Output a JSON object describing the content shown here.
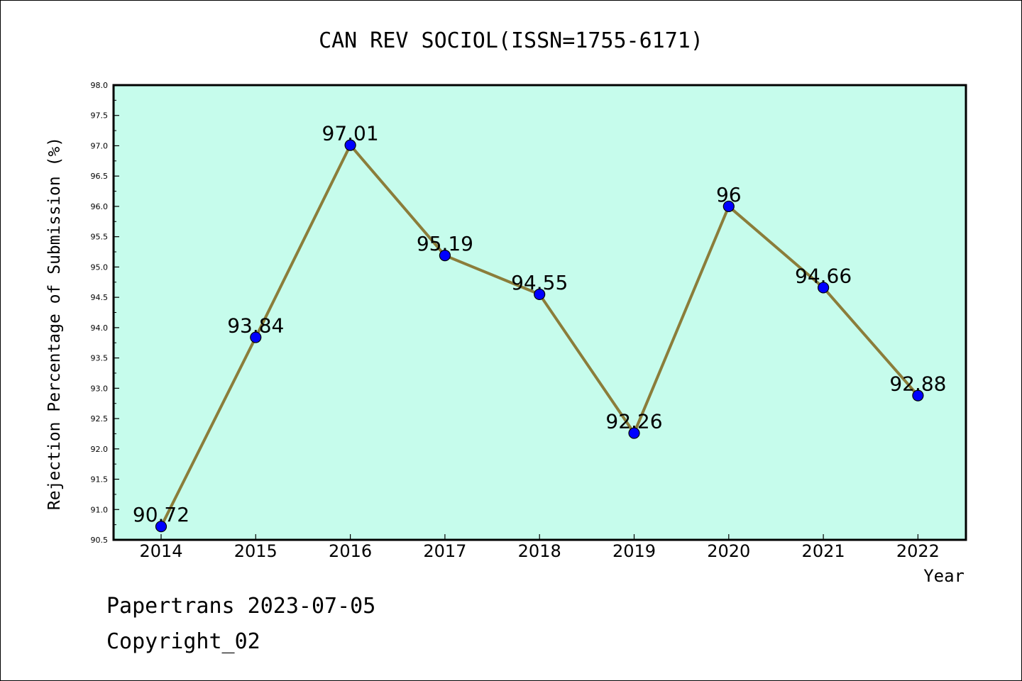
{
  "chart_data": {
    "type": "line",
    "title": "CAN REV SOCIOL(ISSN=1755-6171)",
    "xlabel": "Year",
    "ylabel": "Rejection Percentage of Submission (%)",
    "categories": [
      "2014",
      "2015",
      "2016",
      "2017",
      "2018",
      "2019",
      "2020",
      "2021",
      "2022"
    ],
    "values": [
      90.72,
      93.84,
      97.01,
      95.19,
      94.55,
      92.26,
      96,
      94.66,
      92.88
    ],
    "data_labels": [
      "90.72",
      "93.84",
      "97.01",
      "95.19",
      "94.55",
      "92.26",
      "96",
      "94.66",
      "92.88"
    ],
    "ylim": [
      90.5,
      98.0
    ],
    "yticks": [
      "90.5",
      "91.0",
      "91.5",
      "92.0",
      "92.5",
      "93.0",
      "93.5",
      "94.0",
      "94.5",
      "95.0",
      "95.5",
      "96.0",
      "96.5",
      "97.0",
      "97.5",
      "98.0"
    ],
    "grid": false,
    "colors": {
      "plot_background": "#c6fcec",
      "line": "#8b7d3a",
      "marker": "#0000ff"
    }
  },
  "footer": {
    "line1": "Papertrans 2023-07-05",
    "line2": "Copyright_02"
  }
}
